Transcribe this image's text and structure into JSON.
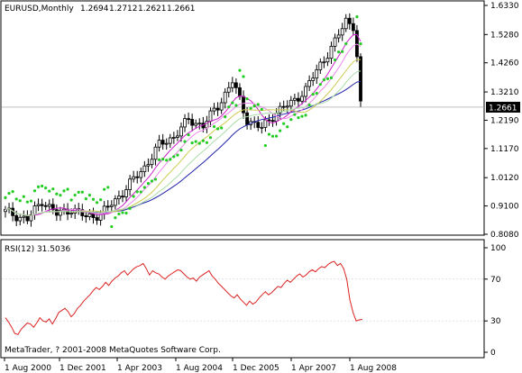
{
  "chart_data": {
    "type": "candlestick",
    "symbol_header": "EURUSD,Monthly",
    "ohlc_header": [
      "1.2694",
      "1.2712",
      "1.2621",
      "1.2661"
    ],
    "price_axis": {
      "ticks": [
        "1.6330",
        "1.5280",
        "1.4260",
        "1.3210",
        "1.2190",
        "1.1170",
        "1.0120",
        "0.9100",
        "0.8080"
      ],
      "range": [
        0.808,
        1.633
      ],
      "current_price": "1.2661"
    },
    "x_axis": {
      "labels": [
        "1 Aug 2000",
        "1 Dec 2001",
        "1 Apr 2003",
        "1 Aug 2004",
        "1 Dec 2005",
        "1 Apr 2007",
        "1 Aug 2008"
      ]
    },
    "rsi": {
      "title": "RSI(12) 31.5036",
      "ticks": [
        "100",
        "70",
        "30",
        "0"
      ],
      "levels": [
        70,
        30
      ],
      "range": [
        0,
        100
      ],
      "values": [
        33,
        29,
        24,
        18,
        17,
        22,
        25,
        28,
        27,
        24,
        28,
        33,
        30,
        29,
        32,
        27,
        32,
        38,
        40,
        42,
        39,
        34,
        37,
        42,
        45,
        49,
        52,
        55,
        59,
        62,
        60,
        63,
        67,
        64,
        68,
        71,
        73,
        76,
        78,
        74,
        77,
        80,
        82,
        83,
        85,
        80,
        74,
        78,
        76,
        75,
        72,
        70,
        73,
        75,
        77,
        79,
        78,
        75,
        72,
        70,
        71,
        68,
        72,
        74,
        76,
        78,
        73,
        70,
        66,
        63,
        60,
        57,
        54,
        52,
        55,
        51,
        48,
        45,
        49,
        46,
        48,
        52,
        55,
        58,
        55,
        57,
        60,
        63,
        62,
        66,
        69,
        67,
        70,
        73,
        75,
        72,
        74,
        77,
        79,
        77,
        80,
        82,
        81,
        84,
        86,
        87,
        83,
        85,
        80,
        70,
        50,
        38,
        30,
        31,
        31.5
      ]
    },
    "watermark": "MetaTrader, ? 2001-2008 MetaQuotes Software Corp."
  },
  "colors": {
    "background": "#ffffff",
    "frame": "#000000",
    "candle": "#000000",
    "sar": "#22cc22",
    "ma_blue": "#2222aa",
    "ma_magenta": "#cc22cc",
    "ma_pink": "#ee88ee",
    "ma_yellow": "#cccc55",
    "ma_lightgreen": "#aaddaa",
    "rsi_line": "#dd2222",
    "price_tag_bg": "#000000",
    "price_tag_fg": "#ffffff"
  }
}
